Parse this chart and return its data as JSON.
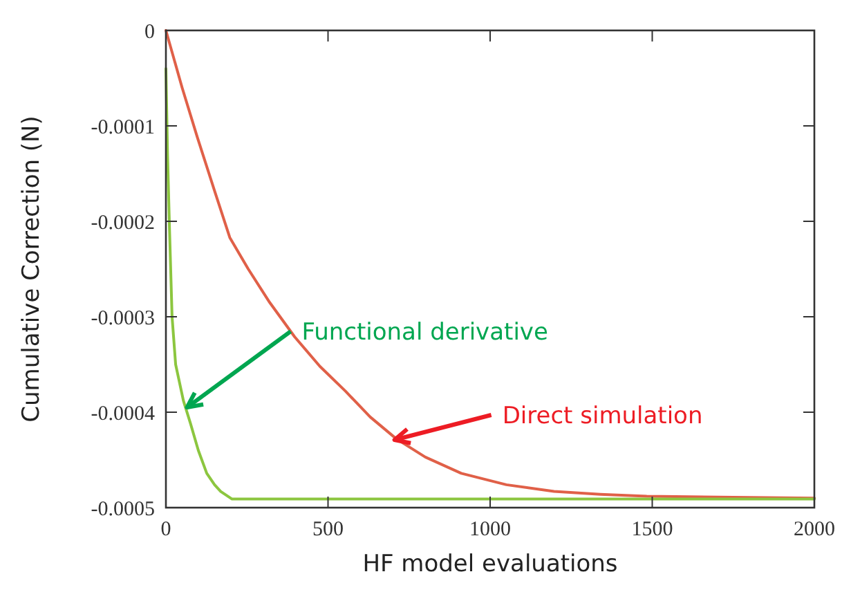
{
  "chart_data": {
    "type": "line",
    "xlabel": "HF model evaluations",
    "ylabel": "Cumulative Correction (N)",
    "xlim": [
      0,
      2000
    ],
    "xticks": [
      0,
      500,
      1000,
      1500,
      2000
    ],
    "ylim": [
      -0.0005,
      0
    ],
    "yticks": [
      -0.0005,
      -0.0004,
      -0.0003,
      -0.0002,
      -0.0001,
      0
    ],
    "grid": false,
    "line_style": "solid",
    "series": [
      {
        "color": "#e06048",
        "x": [
          0,
          50,
          97,
          150,
          197,
          254,
          320,
          397,
          475,
          554,
          630,
          711,
          800,
          911,
          1050,
          1197,
          1340,
          1483,
          1700,
          2000
        ],
        "values": [
          0,
          -6e-05,
          -0.000112,
          -0.000168,
          -0.000217,
          -0.00025,
          -0.000285,
          -0.000321,
          -0.000352,
          -0.000378,
          -0.000405,
          -0.000428,
          -0.000447,
          -0.000464,
          -0.000476,
          -0.000483,
          -0.000486,
          -0.000488,
          -0.000489,
          -0.00049
        ]
      },
      {
        "color": "#8cc63f",
        "x": [
          0,
          5,
          11,
          19,
          30,
          54,
          76,
          100,
          126,
          150,
          169,
          204,
          600,
          1200,
          2000
        ],
        "values": [
          -4e-05,
          -0.00013,
          -0.000207,
          -0.0003,
          -0.00035,
          -0.000388,
          -0.000412,
          -0.00044,
          -0.000464,
          -0.000476,
          -0.000483,
          -0.000491,
          -0.000491,
          -0.000491,
          -0.000491
        ]
      }
    ],
    "annotations": [
      {
        "text": "Functional derivative",
        "x": 65,
        "y": -0.000395
      },
      {
        "text": "Direct simulation",
        "x": 705,
        "y": -0.000429
      }
    ]
  }
}
